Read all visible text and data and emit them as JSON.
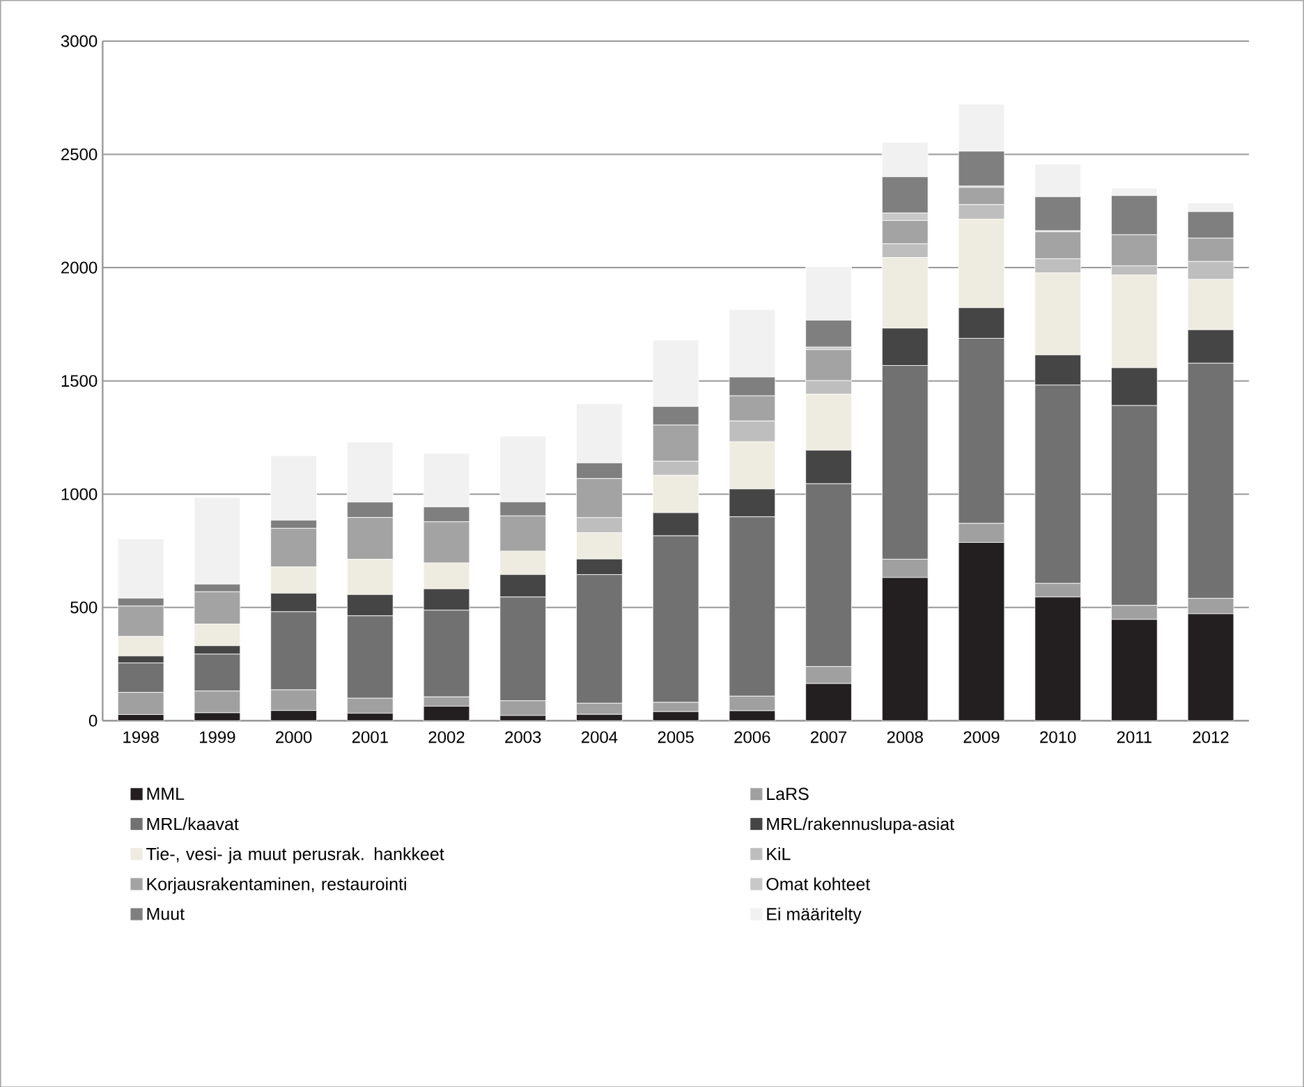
{
  "chart_data": {
    "type": "bar",
    "stacked": true,
    "categories": [
      "1998",
      "1999",
      "2000",
      "2001",
      "2002",
      "2003",
      "2004",
      "2005",
      "2006",
      "2007",
      "2008",
      "2009",
      "2010",
      "2011",
      "2012"
    ],
    "series": [
      {
        "name": "MML",
        "color": "#231f20",
        "values": [
          27,
          35,
          45,
          33,
          64,
          23,
          28,
          40,
          44,
          164,
          632,
          787,
          546,
          447,
          472
        ]
      },
      {
        "name": "LaRS",
        "color": "#a0a0a0",
        "values": [
          98,
          96,
          91,
          66,
          41,
          65,
          49,
          41,
          64,
          75,
          81,
          84,
          60,
          62,
          68
        ]
      },
      {
        "name": "MRL/kaavat",
        "color": "#717171",
        "values": [
          130,
          163,
          345,
          364,
          383,
          458,
          568,
          735,
          792,
          807,
          855,
          817,
          876,
          882,
          1038
        ]
      },
      {
        "name": "MRL/rakennuslupa-asiat",
        "color": "#454545",
        "values": [
          31,
          37,
          82,
          94,
          94,
          99,
          69,
          102,
          123,
          148,
          165,
          135,
          133,
          167,
          148
        ]
      },
      {
        "name": "Tie-, vesi- ja muut perusrak. hankkeet",
        "color": "#eeebe0",
        "values": [
          86,
          95,
          116,
          156,
          114,
          103,
          116,
          165,
          208,
          247,
          311,
          391,
          362,
          409,
          222
        ]
      },
      {
        "name": "KiL",
        "color": "#bebebe",
        "values": [
          0,
          0,
          0,
          0,
          0,
          0,
          66,
          62,
          92,
          60,
          61,
          64,
          62,
          41,
          79
        ]
      },
      {
        "name": "Korjausrakentaminen, restaurointi",
        "color": "#a3a3a3",
        "values": [
          134,
          143,
          170,
          184,
          182,
          156,
          173,
          160,
          111,
          137,
          103,
          76,
          119,
          137,
          103
        ]
      },
      {
        "name": "Omat kohteet",
        "color": "#c8c8c8",
        "values": [
          0,
          0,
          0,
          0,
          0,
          0,
          0,
          0,
          0,
          11,
          33,
          6,
          5,
          0,
          0
        ]
      },
      {
        "name": "Muut",
        "color": "#7f7f7f",
        "values": [
          35,
          34,
          36,
          68,
          66,
          62,
          69,
          82,
          83,
          119,
          160,
          154,
          150,
          173,
          117
        ]
      },
      {
        "name": "Ei määritelty",
        "color": "#f1f1f1",
        "values": [
          261,
          382,
          285,
          265,
          236,
          290,
          261,
          293,
          298,
          236,
          152,
          208,
          144,
          33,
          39
        ]
      }
    ],
    "ylim": [
      0,
      3000
    ],
    "yticks": [
      0,
      500,
      1000,
      1500,
      2000,
      2500,
      3000
    ],
    "grid": "y",
    "legend": "bottom"
  }
}
